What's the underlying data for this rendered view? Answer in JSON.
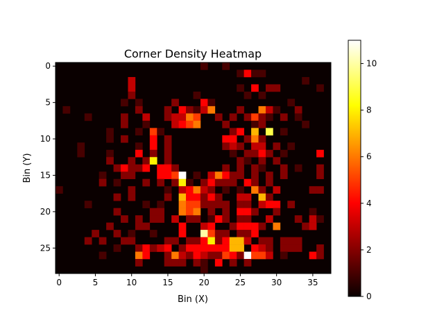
{
  "chart_data": {
    "type": "heatmap",
    "title": "Corner Density Heatmap",
    "xlabel": "Bin (X)",
    "ylabel": "Bin (Y)",
    "n_cols": 38,
    "n_rows": 29,
    "x_ticks": [
      0,
      5,
      10,
      15,
      20,
      25,
      30,
      35
    ],
    "y_ticks": [
      0,
      5,
      10,
      15,
      20,
      25
    ],
    "colorbar": {
      "vmin": 0,
      "vmax": 11,
      "ticks": [
        0,
        2,
        4,
        6,
        8,
        10
      ],
      "colormap": "hot"
    },
    "cells": [
      [
        20,
        0,
        1
      ],
      [
        23,
        0,
        1
      ],
      [
        25,
        1,
        1
      ],
      [
        26,
        1,
        4
      ],
      [
        27,
        1,
        1
      ],
      [
        28,
        1,
        1
      ],
      [
        10,
        2,
        3
      ],
      [
        34,
        2,
        1
      ],
      [
        10,
        3,
        3
      ],
      [
        25,
        3,
        1
      ],
      [
        27,
        3,
        4
      ],
      [
        29,
        3,
        2
      ],
      [
        30,
        3,
        2
      ],
      [
        36,
        3,
        1
      ],
      [
        10,
        4,
        2
      ],
      [
        19,
        4,
        1
      ],
      [
        26,
        4,
        1
      ],
      [
        28,
        4,
        1
      ],
      [
        9,
        5,
        1
      ],
      [
        11,
        5,
        1
      ],
      [
        16,
        5,
        2
      ],
      [
        20,
        5,
        4
      ],
      [
        21,
        5,
        1
      ],
      [
        32,
        5,
        1
      ],
      [
        1,
        6,
        1
      ],
      [
        11,
        6,
        2
      ],
      [
        15,
        6,
        2
      ],
      [
        17,
        6,
        4
      ],
      [
        18,
        6,
        2
      ],
      [
        19,
        6,
        1
      ],
      [
        20,
        6,
        3
      ],
      [
        21,
        6,
        6
      ],
      [
        25,
        6,
        2
      ],
      [
        28,
        6,
        6
      ],
      [
        29,
        6,
        3
      ],
      [
        30,
        6,
        1
      ],
      [
        33,
        6,
        2
      ],
      [
        4,
        7,
        1
      ],
      [
        9,
        7,
        2
      ],
      [
        12,
        7,
        3
      ],
      [
        15,
        7,
        2
      ],
      [
        16,
        7,
        3
      ],
      [
        17,
        7,
        3
      ],
      [
        18,
        7,
        6
      ],
      [
        19,
        7,
        5
      ],
      [
        22,
        7,
        2
      ],
      [
        24,
        7,
        2
      ],
      [
        26,
        7,
        2
      ],
      [
        27,
        7,
        5
      ],
      [
        28,
        7,
        2
      ],
      [
        29,
        7,
        1
      ],
      [
        31,
        7,
        2
      ],
      [
        33,
        7,
        1
      ],
      [
        9,
        8,
        2
      ],
      [
        12,
        8,
        1
      ],
      [
        16,
        8,
        3
      ],
      [
        17,
        8,
        4
      ],
      [
        18,
        8,
        5
      ],
      [
        19,
        8,
        6
      ],
      [
        23,
        8,
        2
      ],
      [
        27,
        8,
        1
      ],
      [
        28,
        8,
        2
      ],
      [
        34,
        8,
        1
      ],
      [
        7,
        9,
        1
      ],
      [
        11,
        9,
        1
      ],
      [
        13,
        9,
        5
      ],
      [
        14,
        9,
        1
      ],
      [
        24,
        9,
        2
      ],
      [
        25,
        9,
        4
      ],
      [
        27,
        9,
        7
      ],
      [
        29,
        9,
        9
      ],
      [
        31,
        9,
        1
      ],
      [
        7,
        10,
        1
      ],
      [
        9,
        10,
        2
      ],
      [
        13,
        10,
        4
      ],
      [
        15,
        10,
        2
      ],
      [
        23,
        10,
        4
      ],
      [
        24,
        10,
        4
      ],
      [
        26,
        10,
        2
      ],
      [
        27,
        10,
        6
      ],
      [
        28,
        10,
        2
      ],
      [
        3,
        11,
        1
      ],
      [
        11,
        11,
        1
      ],
      [
        13,
        11,
        4
      ],
      [
        15,
        11,
        2
      ],
      [
        23,
        11,
        2
      ],
      [
        24,
        11,
        3
      ],
      [
        25,
        11,
        2
      ],
      [
        27,
        11,
        3
      ],
      [
        28,
        11,
        3
      ],
      [
        30,
        11,
        2
      ],
      [
        32,
        11,
        1
      ],
      [
        3,
        12,
        1
      ],
      [
        7,
        12,
        1
      ],
      [
        11,
        12,
        4
      ],
      [
        13,
        12,
        2
      ],
      [
        15,
        12,
        2
      ],
      [
        24,
        12,
        1
      ],
      [
        26,
        12,
        2
      ],
      [
        27,
        12,
        2
      ],
      [
        28,
        12,
        4
      ],
      [
        29,
        12,
        2
      ],
      [
        31,
        12,
        1
      ],
      [
        36,
        12,
        4
      ],
      [
        7,
        13,
        2
      ],
      [
        10,
        13,
        2
      ],
      [
        12,
        13,
        2
      ],
      [
        13,
        13,
        8
      ],
      [
        15,
        13,
        2
      ],
      [
        25,
        13,
        2
      ],
      [
        26,
        13,
        1
      ],
      [
        28,
        13,
        2
      ],
      [
        30,
        13,
        2
      ],
      [
        8,
        14,
        2
      ],
      [
        9,
        14,
        4
      ],
      [
        10,
        14,
        2
      ],
      [
        11,
        14,
        2
      ],
      [
        12,
        14,
        4
      ],
      [
        14,
        14,
        4
      ],
      [
        15,
        14,
        4
      ],
      [
        16,
        14,
        2
      ],
      [
        23,
        14,
        2
      ],
      [
        25,
        14,
        2
      ],
      [
        27,
        14,
        2
      ],
      [
        28,
        14,
        1
      ],
      [
        31,
        14,
        2
      ],
      [
        33,
        14,
        1
      ],
      [
        36,
        14,
        2
      ],
      [
        6,
        15,
        1
      ],
      [
        9,
        15,
        2
      ],
      [
        10,
        15,
        2
      ],
      [
        14,
        15,
        4
      ],
      [
        15,
        15,
        4
      ],
      [
        16,
        15,
        5
      ],
      [
        17,
        15,
        11
      ],
      [
        19,
        15,
        1
      ],
      [
        21,
        15,
        3
      ],
      [
        22,
        15,
        6
      ],
      [
        23,
        15,
        4
      ],
      [
        24,
        15,
        2
      ],
      [
        25,
        15,
        2
      ],
      [
        27,
        15,
        2
      ],
      [
        29,
        15,
        2
      ],
      [
        31,
        15,
        2
      ],
      [
        36,
        15,
        2
      ],
      [
        6,
        16,
        2
      ],
      [
        8,
        16,
        1
      ],
      [
        12,
        16,
        2
      ],
      [
        14,
        16,
        2
      ],
      [
        16,
        16,
        2
      ],
      [
        17,
        16,
        8
      ],
      [
        18,
        16,
        1
      ],
      [
        20,
        16,
        2
      ],
      [
        21,
        16,
        4
      ],
      [
        22,
        16,
        2
      ],
      [
        23,
        16,
        2
      ],
      [
        24,
        16,
        2
      ],
      [
        26,
        16,
        4
      ],
      [
        27,
        16,
        2
      ],
      [
        29,
        16,
        2
      ],
      [
        0,
        17,
        1
      ],
      [
        10,
        17,
        2
      ],
      [
        15,
        17,
        1
      ],
      [
        17,
        17,
        3
      ],
      [
        18,
        17,
        4
      ],
      [
        19,
        17,
        6
      ],
      [
        20,
        17,
        3
      ],
      [
        21,
        17,
        2
      ],
      [
        23,
        17,
        1
      ],
      [
        25,
        17,
        1
      ],
      [
        27,
        17,
        6
      ],
      [
        28,
        17,
        2
      ],
      [
        30,
        17,
        3
      ],
      [
        35,
        17,
        2
      ],
      [
        36,
        17,
        2
      ],
      [
        8,
        18,
        2
      ],
      [
        10,
        18,
        2
      ],
      [
        15,
        18,
        2
      ],
      [
        17,
        18,
        7
      ],
      [
        18,
        18,
        4
      ],
      [
        19,
        18,
        4
      ],
      [
        20,
        18,
        2
      ],
      [
        21,
        18,
        4
      ],
      [
        22,
        18,
        2
      ],
      [
        25,
        18,
        3
      ],
      [
        26,
        18,
        3
      ],
      [
        28,
        18,
        7
      ],
      [
        29,
        18,
        2
      ],
      [
        4,
        19,
        1
      ],
      [
        12,
        19,
        1
      ],
      [
        14,
        19,
        1
      ],
      [
        17,
        19,
        6
      ],
      [
        18,
        19,
        5
      ],
      [
        19,
        19,
        5
      ],
      [
        20,
        19,
        2
      ],
      [
        21,
        19,
        2
      ],
      [
        22,
        19,
        2
      ],
      [
        23,
        19,
        2
      ],
      [
        25,
        19,
        2
      ],
      [
        26,
        19,
        2
      ],
      [
        28,
        19,
        3
      ],
      [
        29,
        19,
        4
      ],
      [
        30,
        19,
        4
      ],
      [
        32,
        19,
        2
      ],
      [
        8,
        20,
        2
      ],
      [
        13,
        20,
        2
      ],
      [
        14,
        20,
        2
      ],
      [
        17,
        20,
        6
      ],
      [
        18,
        20,
        5
      ],
      [
        19,
        20,
        6
      ],
      [
        21,
        20,
        2
      ],
      [
        23,
        20,
        2
      ],
      [
        25,
        20,
        4
      ],
      [
        26,
        20,
        4
      ],
      [
        27,
        20,
        2
      ],
      [
        30,
        20,
        2
      ],
      [
        35,
        20,
        1
      ],
      [
        9,
        21,
        2
      ],
      [
        11,
        21,
        2
      ],
      [
        13,
        21,
        2
      ],
      [
        14,
        21,
        2
      ],
      [
        16,
        21,
        3
      ],
      [
        18,
        21,
        2
      ],
      [
        19,
        21,
        2
      ],
      [
        21,
        21,
        1
      ],
      [
        22,
        21,
        4
      ],
      [
        23,
        21,
        2
      ],
      [
        25,
        21,
        2
      ],
      [
        26,
        21,
        2
      ],
      [
        29,
        21,
        3
      ],
      [
        33,
        21,
        2
      ],
      [
        35,
        21,
        3
      ],
      [
        36,
        21,
        1
      ],
      [
        7,
        22,
        2
      ],
      [
        11,
        22,
        2
      ],
      [
        12,
        22,
        2
      ],
      [
        17,
        22,
        4
      ],
      [
        20,
        22,
        3
      ],
      [
        21,
        22,
        4
      ],
      [
        24,
        22,
        2
      ],
      [
        25,
        22,
        4
      ],
      [
        26,
        22,
        4
      ],
      [
        27,
        22,
        4
      ],
      [
        28,
        22,
        2
      ],
      [
        30,
        22,
        6
      ],
      [
        34,
        22,
        2
      ],
      [
        35,
        22,
        3
      ],
      [
        5,
        23,
        2
      ],
      [
        8,
        23,
        2
      ],
      [
        10,
        23,
        1
      ],
      [
        13,
        23,
        1
      ],
      [
        17,
        23,
        4
      ],
      [
        20,
        23,
        10
      ],
      [
        21,
        23,
        5
      ],
      [
        22,
        23,
        2
      ],
      [
        23,
        23,
        2
      ],
      [
        25,
        23,
        2
      ],
      [
        26,
        23,
        2
      ],
      [
        27,
        23,
        4
      ],
      [
        4,
        24,
        2
      ],
      [
        6,
        24,
        2
      ],
      [
        9,
        24,
        2
      ],
      [
        10,
        24,
        2
      ],
      [
        15,
        24,
        2
      ],
      [
        16,
        24,
        2
      ],
      [
        18,
        24,
        2
      ],
      [
        19,
        24,
        2
      ],
      [
        20,
        24,
        4
      ],
      [
        21,
        24,
        8
      ],
      [
        22,
        24,
        2
      ],
      [
        23,
        24,
        4
      ],
      [
        24,
        24,
        7
      ],
      [
        25,
        24,
        7
      ],
      [
        26,
        24,
        3
      ],
      [
        28,
        24,
        2
      ],
      [
        29,
        24,
        2
      ],
      [
        31,
        24,
        2
      ],
      [
        32,
        24,
        2
      ],
      [
        33,
        24,
        2
      ],
      [
        8,
        25,
        1
      ],
      [
        11,
        25,
        2
      ],
      [
        12,
        25,
        4
      ],
      [
        13,
        25,
        2
      ],
      [
        14,
        25,
        3
      ],
      [
        15,
        25,
        4
      ],
      [
        17,
        25,
        2
      ],
      [
        18,
        25,
        4
      ],
      [
        19,
        25,
        4
      ],
      [
        20,
        25,
        4
      ],
      [
        21,
        25,
        4
      ],
      [
        22,
        25,
        4
      ],
      [
        23,
        25,
        4
      ],
      [
        24,
        25,
        7
      ],
      [
        25,
        25,
        7
      ],
      [
        27,
        25,
        4
      ],
      [
        28,
        25,
        3
      ],
      [
        29,
        25,
        2
      ],
      [
        31,
        25,
        2
      ],
      [
        32,
        25,
        2
      ],
      [
        33,
        25,
        2
      ],
      [
        36,
        25,
        2
      ],
      [
        6,
        26,
        1
      ],
      [
        11,
        26,
        6
      ],
      [
        12,
        26,
        4
      ],
      [
        15,
        26,
        2
      ],
      [
        16,
        26,
        6
      ],
      [
        17,
        26,
        3
      ],
      [
        18,
        26,
        2
      ],
      [
        19,
        26,
        4
      ],
      [
        20,
        26,
        3
      ],
      [
        21,
        26,
        2
      ],
      [
        22,
        26,
        2
      ],
      [
        23,
        26,
        5
      ],
      [
        24,
        26,
        4
      ],
      [
        25,
        26,
        2
      ],
      [
        26,
        26,
        11
      ],
      [
        27,
        26,
        5
      ],
      [
        28,
        26,
        5
      ],
      [
        29,
        26,
        3
      ],
      [
        31,
        26,
        1
      ],
      [
        35,
        26,
        4
      ],
      [
        36,
        26,
        2
      ],
      [
        11,
        27,
        2
      ],
      [
        15,
        27,
        2
      ],
      [
        16,
        27,
        2
      ],
      [
        17,
        27,
        2
      ],
      [
        19,
        27,
        2
      ],
      [
        20,
        27,
        1
      ],
      [
        22,
        27,
        4
      ],
      [
        24,
        27,
        2
      ],
      [
        26,
        27,
        2
      ],
      [
        20,
        28,
        1
      ]
    ]
  }
}
